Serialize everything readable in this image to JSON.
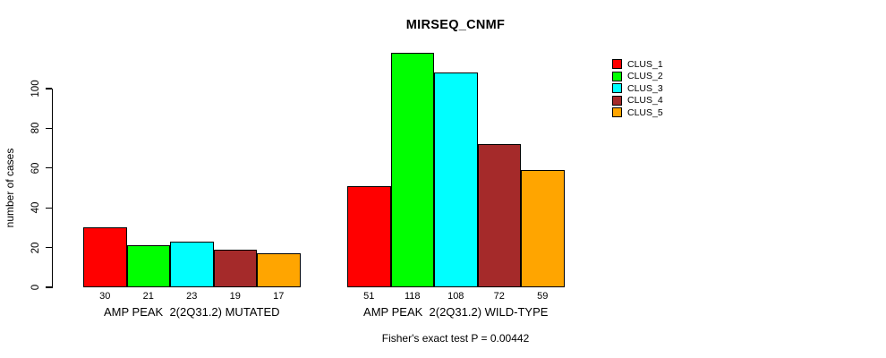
{
  "chart_data": {
    "type": "bar",
    "title": "MIRSEQ_CNMF",
    "ylabel": "number of cases",
    "xlabel": "",
    "groups": [
      "AMP PEAK  2(2Q31.2) MUTATED",
      "AMP PEAK  2(2Q31.2) WILD-TYPE"
    ],
    "series": [
      {
        "name": "CLUS_1",
        "color": "#FF0000",
        "values": [
          30,
          51
        ]
      },
      {
        "name": "CLUS_2",
        "color": "#00FF00",
        "values": [
          21,
          118
        ]
      },
      {
        "name": "CLUS_3",
        "color": "#00FFFF",
        "values": [
          23,
          108
        ]
      },
      {
        "name": "CLUS_4",
        "color": "#A52A2A",
        "values": [
          19,
          72
        ]
      },
      {
        "name": "CLUS_5",
        "color": "#FFA500",
        "values": [
          17,
          59
        ]
      }
    ],
    "yticks": [
      0,
      20,
      40,
      60,
      80,
      100
    ],
    "ylim": [
      0,
      118
    ],
    "grid": false,
    "bar_value_labels_shown": true,
    "legend_position": "right-outside",
    "annotation": "Fisher's exact test P = 0.00442",
    "axis_color": "#000000",
    "bar_border_color": "#000000",
    "background_color": "#FFFFFF"
  }
}
